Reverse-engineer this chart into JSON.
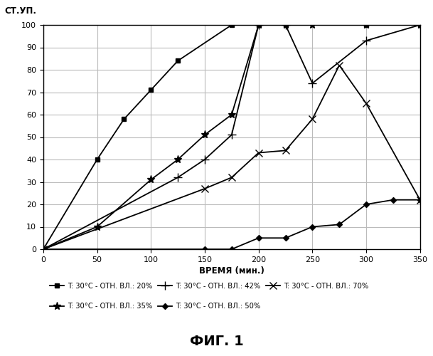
{
  "series": [
    {
      "label": "T: 30°C - ОТН. ВЛ.: 20%",
      "x": [
        0,
        50,
        75,
        100,
        125,
        175,
        200,
        225,
        300,
        350
      ],
      "y": [
        0,
        40,
        58,
        71,
        84,
        100,
        100,
        100,
        100,
        100
      ],
      "marker": "s",
      "markersize": 5
    },
    {
      "label": "T: 30°C - ОТН. ВЛ.: 35%",
      "x": [
        0,
        50,
        100,
        125,
        150,
        175,
        200,
        225,
        250,
        300,
        350
      ],
      "y": [
        0,
        10,
        31,
        40,
        51,
        60,
        100,
        100,
        100,
        100,
        100
      ],
      "marker": "*",
      "markersize": 8
    },
    {
      "label": "T: 30°C - ОТН. ВЛ.: 42%",
      "x": [
        0,
        125,
        150,
        175,
        200,
        225,
        250,
        300,
        350
      ],
      "y": [
        0,
        32,
        40,
        51,
        100,
        100,
        74,
        93,
        100
      ],
      "marker": "+",
      "markersize": 8
    },
    {
      "label": "T: 30°C - ОТН. ВЛ.: 50%",
      "x": [
        0,
        150,
        175,
        200,
        225,
        250,
        275,
        300,
        325,
        350
      ],
      "y": [
        0,
        0,
        0,
        5,
        5,
        10,
        11,
        20,
        22,
        22
      ],
      "marker": "D",
      "markersize": 4
    },
    {
      "label": "T: 30°C - ОТН. ВЛ.: 70%",
      "x": [
        0,
        150,
        175,
        200,
        225,
        250,
        275,
        300,
        350
      ],
      "y": [
        0,
        27,
        32,
        43,
        44,
        58,
        82,
        65,
        22
      ],
      "marker": "x",
      "markersize": 7
    }
  ],
  "xlabel": "ВРЕМЯ (мин.)",
  "ylabel": "СТ.УП.",
  "xlim": [
    0,
    350
  ],
  "ylim": [
    0,
    100
  ],
  "xticks": [
    0,
    50,
    100,
    150,
    200,
    250,
    300,
    350
  ],
  "yticks": [
    0,
    10,
    20,
    30,
    40,
    50,
    60,
    70,
    80,
    90,
    100
  ],
  "title_fig": "ФИГ. 1",
  "grid_color": "#bbbbbb",
  "background_color": "#ffffff",
  "row1_legend_order": [
    0,
    2,
    4
  ],
  "row2_legend_order": [
    1,
    3
  ]
}
